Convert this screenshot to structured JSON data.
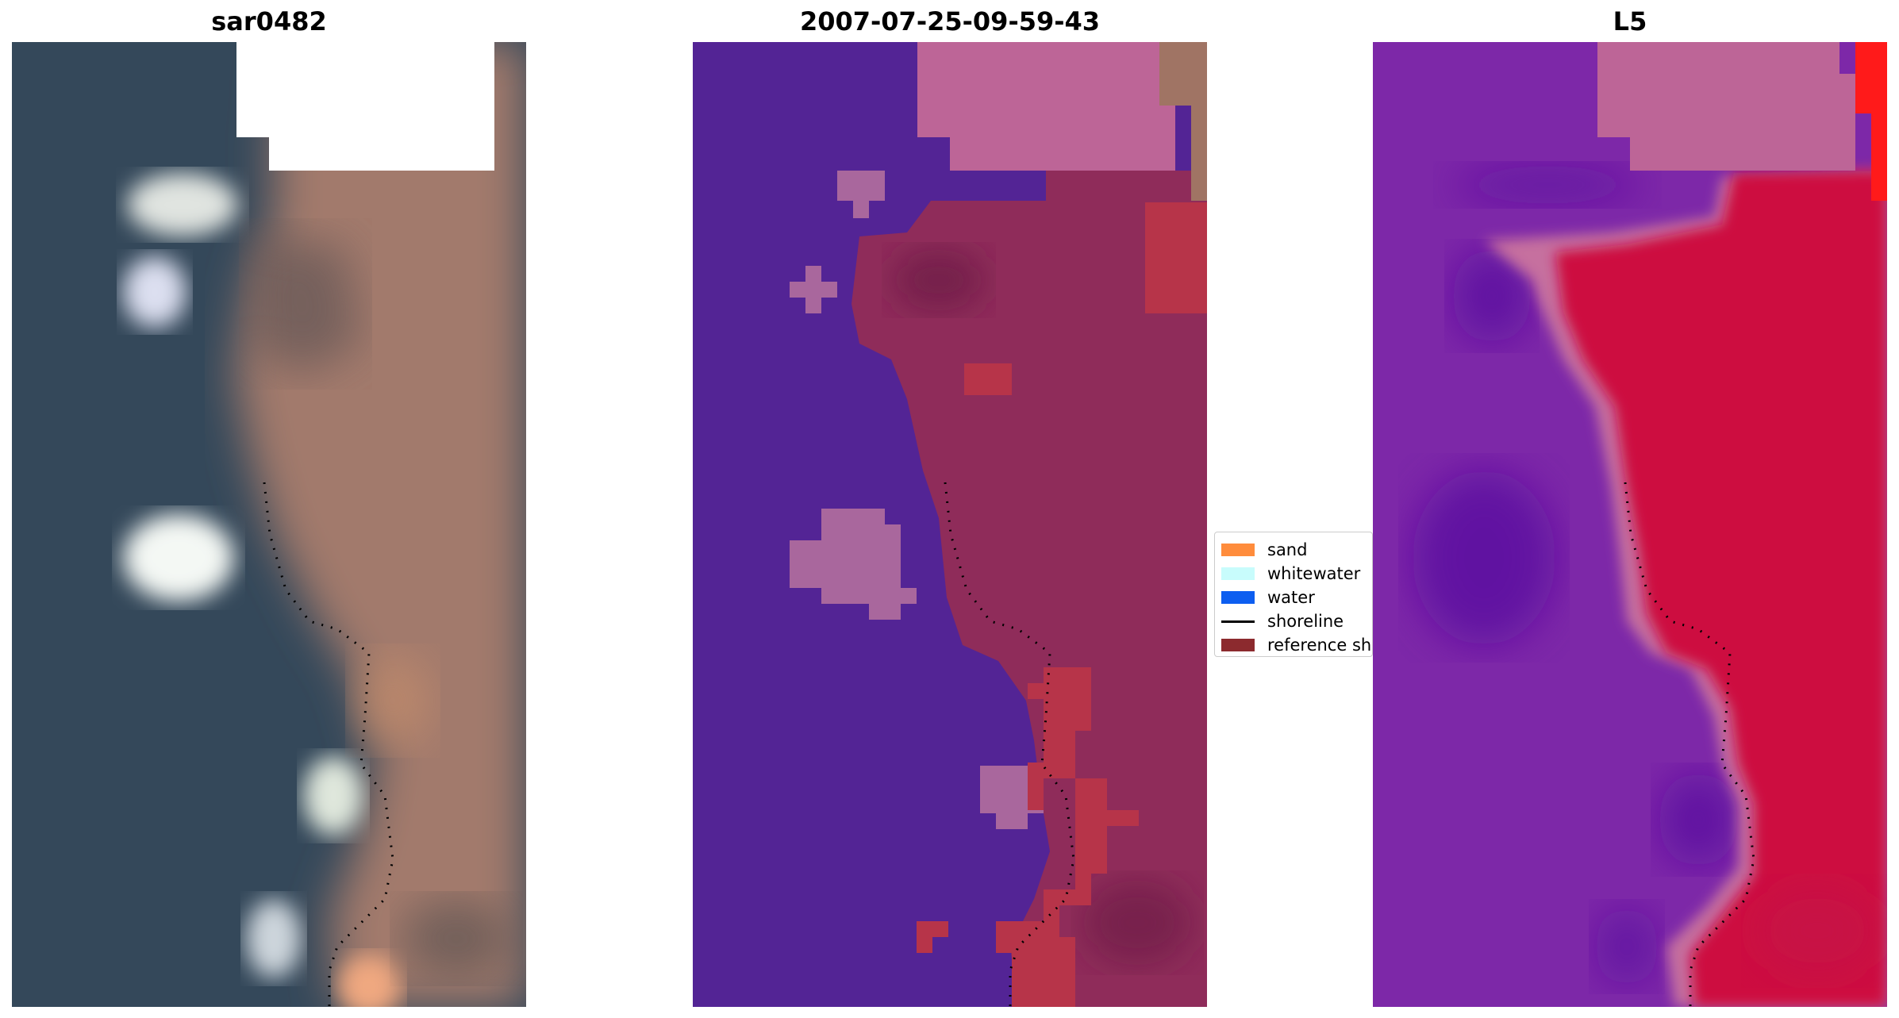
{
  "panels": [
    {
      "title": "sar0482"
    },
    {
      "title": "2007-07-25-09-59-43"
    },
    {
      "title": "L5"
    }
  ],
  "legend": {
    "items": [
      {
        "label": "sand",
        "color": "#ff8c3c",
        "kind": "patch"
      },
      {
        "label": "whitewater",
        "color": "#c8fcfc",
        "kind": "patch"
      },
      {
        "label": "water",
        "color": "#0d5ef0",
        "kind": "patch"
      },
      {
        "label": "shoreline",
        "color": "#000000",
        "kind": "line"
      },
      {
        "label": "reference shoreline",
        "color": "#8c2a2e",
        "kind": "patch"
      }
    ]
  },
  "colors": {
    "rgb_water": "#34485a",
    "rgb_land": "#a27a6c",
    "class_water": "#532495",
    "class_land": "#8f2c5a",
    "class_sand": "#b73449",
    "class_cloud": "#a9679d",
    "mndwi_water": "#7d28a8",
    "mndwi_land": "#cd0d40",
    "mndwi_shore_band": "#c6709f",
    "nodata_pink": "#bd6597"
  }
}
